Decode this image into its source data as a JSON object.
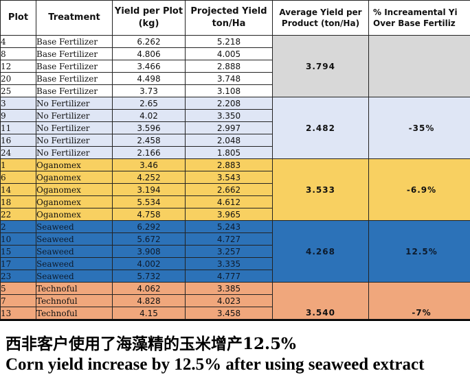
{
  "table": {
    "headers": {
      "plot": "Plot",
      "treatment": "Treatment",
      "yield_per_plot": "Yield per Plot (kg)",
      "projected_yield": "Projected Yield ton/Ha",
      "average_yield": "Average Yield per Product (ton/Ha)",
      "incremental": "% Increamental Yi Over Base Fertiliz"
    },
    "groups": [
      {
        "key": "base",
        "average": "3.794",
        "increment": "",
        "rows": [
          {
            "plot": "4",
            "treatment": "Base Fertilizer",
            "yield": "6.262",
            "projected": "5.218"
          },
          {
            "plot": "8",
            "treatment": "Base Fertilizer",
            "yield": "4.806",
            "projected": "4.005"
          },
          {
            "plot": "12",
            "treatment": "Base Fertilizer",
            "yield": "3.466",
            "projected": "2.888"
          },
          {
            "plot": "20",
            "treatment": "Base Fertilizer",
            "yield": "4.498",
            "projected": "3.748"
          },
          {
            "plot": "25",
            "treatment": "Base Fertilizer",
            "yield": "3.73",
            "projected": "3.108"
          }
        ]
      },
      {
        "key": "none",
        "average": "2.482",
        "increment": "-35%",
        "rows": [
          {
            "plot": "3",
            "treatment": "No Fertilizer",
            "yield": "2.65",
            "projected": "2.208"
          },
          {
            "plot": "9",
            "treatment": "No Fertilizer",
            "yield": "4.02",
            "projected": "3.350"
          },
          {
            "plot": "11",
            "treatment": "No Fertilizer",
            "yield": "3.596",
            "projected": "2.997"
          },
          {
            "plot": "16",
            "treatment": "No Fertilizer",
            "yield": "2.458",
            "projected": "2.048"
          },
          {
            "plot": "24",
            "treatment": "No Fertilizer",
            "yield": "2.166",
            "projected": "1.805"
          }
        ]
      },
      {
        "key": "orga",
        "average": "3.533",
        "increment": "-6.9%",
        "rows": [
          {
            "plot": "1",
            "treatment": "Oganomex",
            "yield": "3.46",
            "projected": "2.883"
          },
          {
            "plot": "6",
            "treatment": "Oganomex",
            "yield": "4.252",
            "projected": "3.543"
          },
          {
            "plot": "14",
            "treatment": "Oganomex",
            "yield": "3.194",
            "projected": "2.662"
          },
          {
            "plot": "18",
            "treatment": "Oganomex",
            "yield": "5.534",
            "projected": "4.612"
          },
          {
            "plot": "22",
            "treatment": "Oganomex",
            "yield": "4.758",
            "projected": "3.965"
          }
        ]
      },
      {
        "key": "seaw",
        "average": "4.268",
        "increment": "12.5%",
        "rows": [
          {
            "plot": "2",
            "treatment": "Seaweed",
            "yield": "6.292",
            "projected": "5.243"
          },
          {
            "plot": "10",
            "treatment": "Seaweed",
            "yield": "5.672",
            "projected": "4.727"
          },
          {
            "plot": "15",
            "treatment": "Seaweed",
            "yield": "3.908",
            "projected": "3.257"
          },
          {
            "plot": "17",
            "treatment": "Seaweed",
            "yield": "4.002",
            "projected": "3.335"
          },
          {
            "plot": "23",
            "treatment": "Seaweed",
            "yield": "5.732",
            "projected": "4.777"
          }
        ]
      },
      {
        "key": "tech",
        "average": "3.540",
        "increment": "-7%",
        "bottom": true,
        "rows": [
          {
            "plot": "5",
            "treatment": "Technoful",
            "yield": "4.062",
            "projected": "3.385"
          },
          {
            "plot": "7",
            "treatment": "Technoful",
            "yield": "4.828",
            "projected": "4.023"
          },
          {
            "plot": "13",
            "treatment": "Technoful",
            "yield": "4.15",
            "projected": "3.458"
          }
        ]
      }
    ]
  },
  "caption": {
    "chinese": "西非客户使用了海藻精的玉米增产12.5%",
    "english": "Corn yield increase by 12.5% after using seaweed extract"
  },
  "colors": {
    "base_avg": "#d8d8d8",
    "no_fertilizer": "#dfe6f5",
    "oganomex": "#f8d061",
    "seaweed": "#2c72b8",
    "technoful": "#f0a77c"
  }
}
